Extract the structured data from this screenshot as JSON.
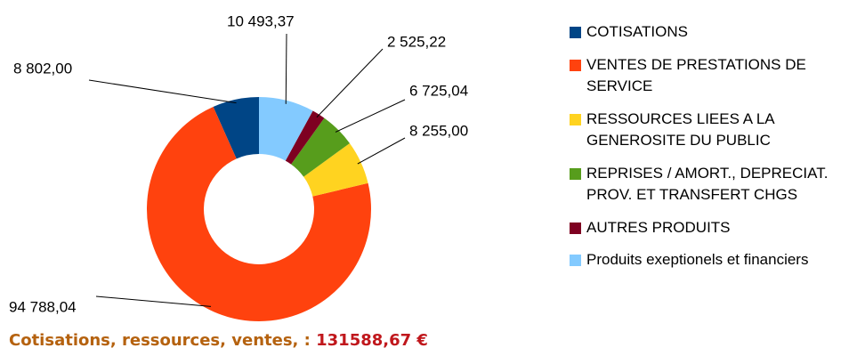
{
  "chart_data": {
    "type": "donut",
    "categories": [
      "COTISATIONS",
      "VENTES DE PRESTATIONS DE SERVICE",
      "RESSOURCES LIEES A LA GENEROSITE DU PUBLIC",
      "REPRISES / AMORT., DEPRECIAT. PROV. ET TRANSFERT CHGS",
      "AUTRES PRODUITS",
      "Produits exeptionels et financiers"
    ],
    "values": [
      8802.0,
      94788.04,
      8255.0,
      6725.04,
      2525.22,
      10493.37
    ],
    "value_labels": [
      "8 802,00",
      "94 788,04",
      "8 255,00",
      "6 725,04",
      "2 525,22",
      "10 493,37"
    ],
    "colors": [
      "#004586",
      "#ff420e",
      "#ffd320",
      "#579d1c",
      "#7e0021",
      "#83caff"
    ],
    "legend": "right",
    "footer": {
      "label": "Cotisations, ressources, ventes, :",
      "value": 131588.67,
      "value_label": "131588,67 €"
    }
  }
}
